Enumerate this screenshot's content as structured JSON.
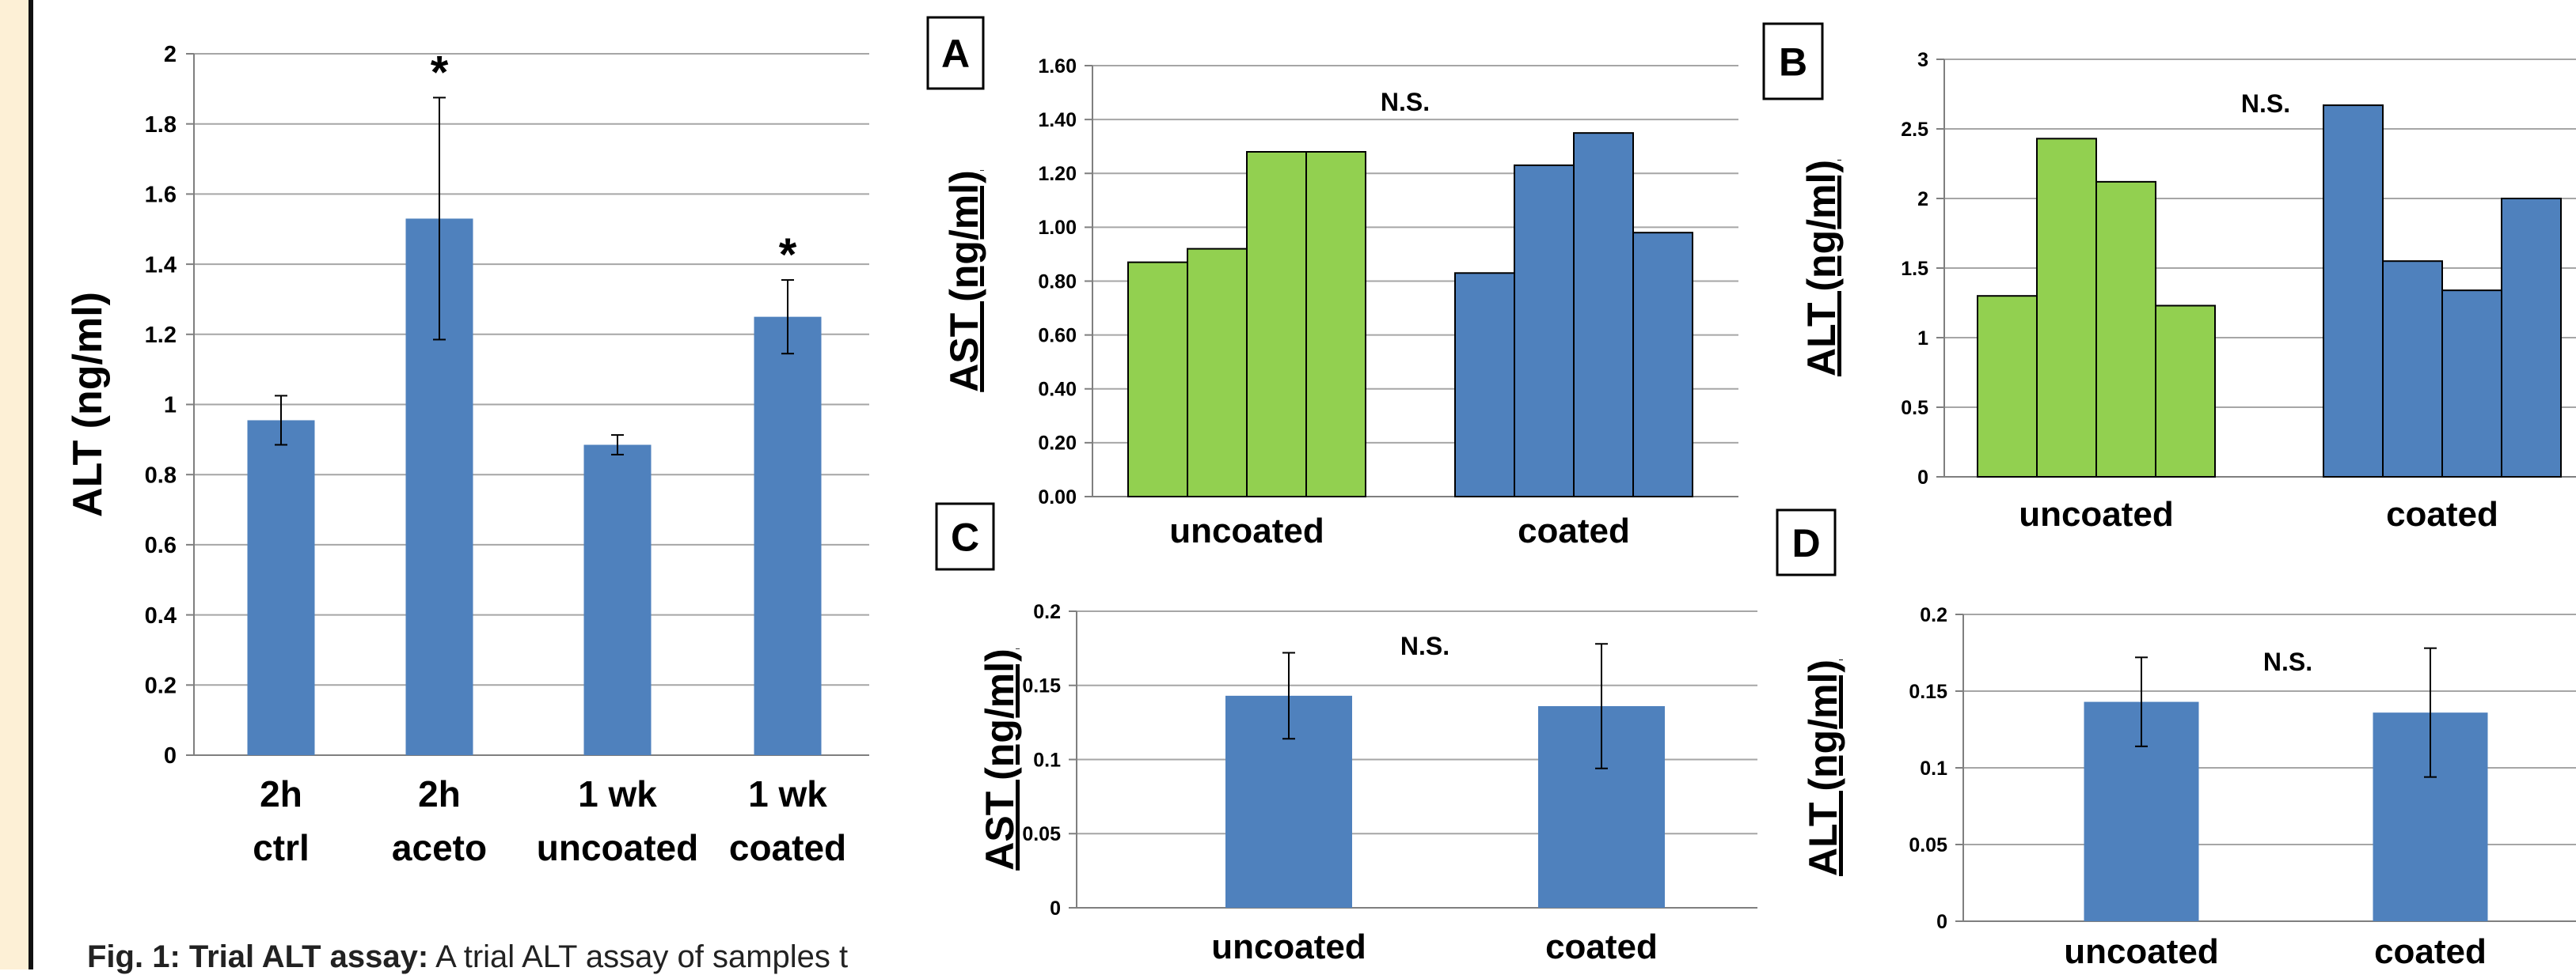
{
  "colors": {
    "blue": "#4f81bd",
    "green": "#92d050",
    "grid": "#a6a6a6",
    "axis": "#7f7f7f",
    "text": "#000000",
    "strip": "#fdf0d6"
  },
  "caption": {
    "bold": "Fig. 1: Trial ALT assay:",
    "rest": "A trial ALT assay of samples t"
  },
  "chart_data": [
    {
      "id": "main",
      "type": "bar",
      "ylabel": "ALT  (ng/ml)",
      "ylim": [
        0,
        2
      ],
      "yticks": [
        0,
        0.2,
        0.4,
        0.6,
        0.8,
        1,
        1.2,
        1.4,
        1.6,
        1.8,
        2
      ],
      "ytick_labels": [
        "0",
        "0.2",
        "0.4",
        "0.6",
        "0.8",
        "1",
        "1.2",
        "1.4",
        "1.6",
        "1.8",
        "2"
      ],
      "grid": true,
      "categories": [
        {
          "line1": "2h",
          "line2": "ctrl"
        },
        {
          "line1": "2h",
          "line2": "aceto"
        },
        {
          "line1": "1 wk",
          "line2": "uncoated"
        },
        {
          "line1": "1 wk",
          "line2": "coated"
        }
      ],
      "values": [
        0.955,
        1.53,
        0.885,
        1.25
      ],
      "errors": [
        0.07,
        0.345,
        0.028,
        0.105
      ],
      "annotations": [
        "",
        "*",
        "",
        "*"
      ]
    },
    {
      "id": "A",
      "panel_label": "A",
      "type": "bar",
      "ylabel": "AST (ng/ml)",
      "ylim": [
        0,
        1.6
      ],
      "yticks": [
        0,
        0.2,
        0.4,
        0.6,
        0.8,
        1.0,
        1.2,
        1.4,
        1.6
      ],
      "ytick_labels": [
        "0.00",
        "0.20",
        "0.40",
        "0.60",
        "0.80",
        "1.00",
        "1.20",
        "1.40",
        "1.60"
      ],
      "grid": true,
      "annotation": "N.S.",
      "groups": [
        {
          "label": "uncoated",
          "color": "#92d050",
          "values": [
            0.87,
            0.92,
            1.28,
            1.28
          ]
        },
        {
          "label": "coated",
          "color": "#4f81bd",
          "values": [
            0.83,
            1.23,
            1.35,
            0.98
          ]
        }
      ]
    },
    {
      "id": "B",
      "panel_label": "B",
      "type": "bar",
      "ylabel": "ALT (ng/ml)",
      "ylim": [
        0,
        3
      ],
      "yticks": [
        0,
        0.5,
        1,
        1.5,
        2,
        2.5,
        3
      ],
      "ytick_labels": [
        "0",
        "0.5",
        "1",
        "1.5",
        "2",
        "2.5",
        "3"
      ],
      "grid": true,
      "annotation": "N.S.",
      "groups": [
        {
          "label": "uncoated",
          "color": "#92d050",
          "values": [
            1.3,
            2.43,
            2.12,
            1.23
          ]
        },
        {
          "label": "coated",
          "color": "#4f81bd",
          "values": [
            2.67,
            1.55,
            1.34,
            2.0
          ]
        }
      ]
    },
    {
      "id": "C",
      "panel_label": "C",
      "type": "bar",
      "ylabel": "AST (ng/ml)",
      "ylim": [
        0,
        0.2
      ],
      "yticks": [
        0,
        0.05,
        0.1,
        0.15,
        0.2
      ],
      "ytick_labels": [
        "0",
        "0.05",
        "0.1",
        "0.15",
        "0.2"
      ],
      "grid": true,
      "annotation": "N.S.",
      "categories": [
        "uncoated",
        "coated"
      ],
      "values": [
        0.143,
        0.136
      ],
      "errors": [
        0.029,
        0.042
      ]
    },
    {
      "id": "D",
      "panel_label": "D",
      "type": "bar",
      "ylabel": "ALT (ng/ml)",
      "ylim": [
        0,
        0.2
      ],
      "yticks": [
        0,
        0.05,
        0.1,
        0.15,
        0.2
      ],
      "ytick_labels": [
        "0",
        "0.05",
        "0.1",
        "0.15",
        "0.2"
      ],
      "grid": true,
      "annotation": "N.S.",
      "categories": [
        "uncoated",
        "coated"
      ],
      "values": [
        0.143,
        0.136
      ],
      "errors": [
        0.029,
        0.042
      ]
    }
  ]
}
